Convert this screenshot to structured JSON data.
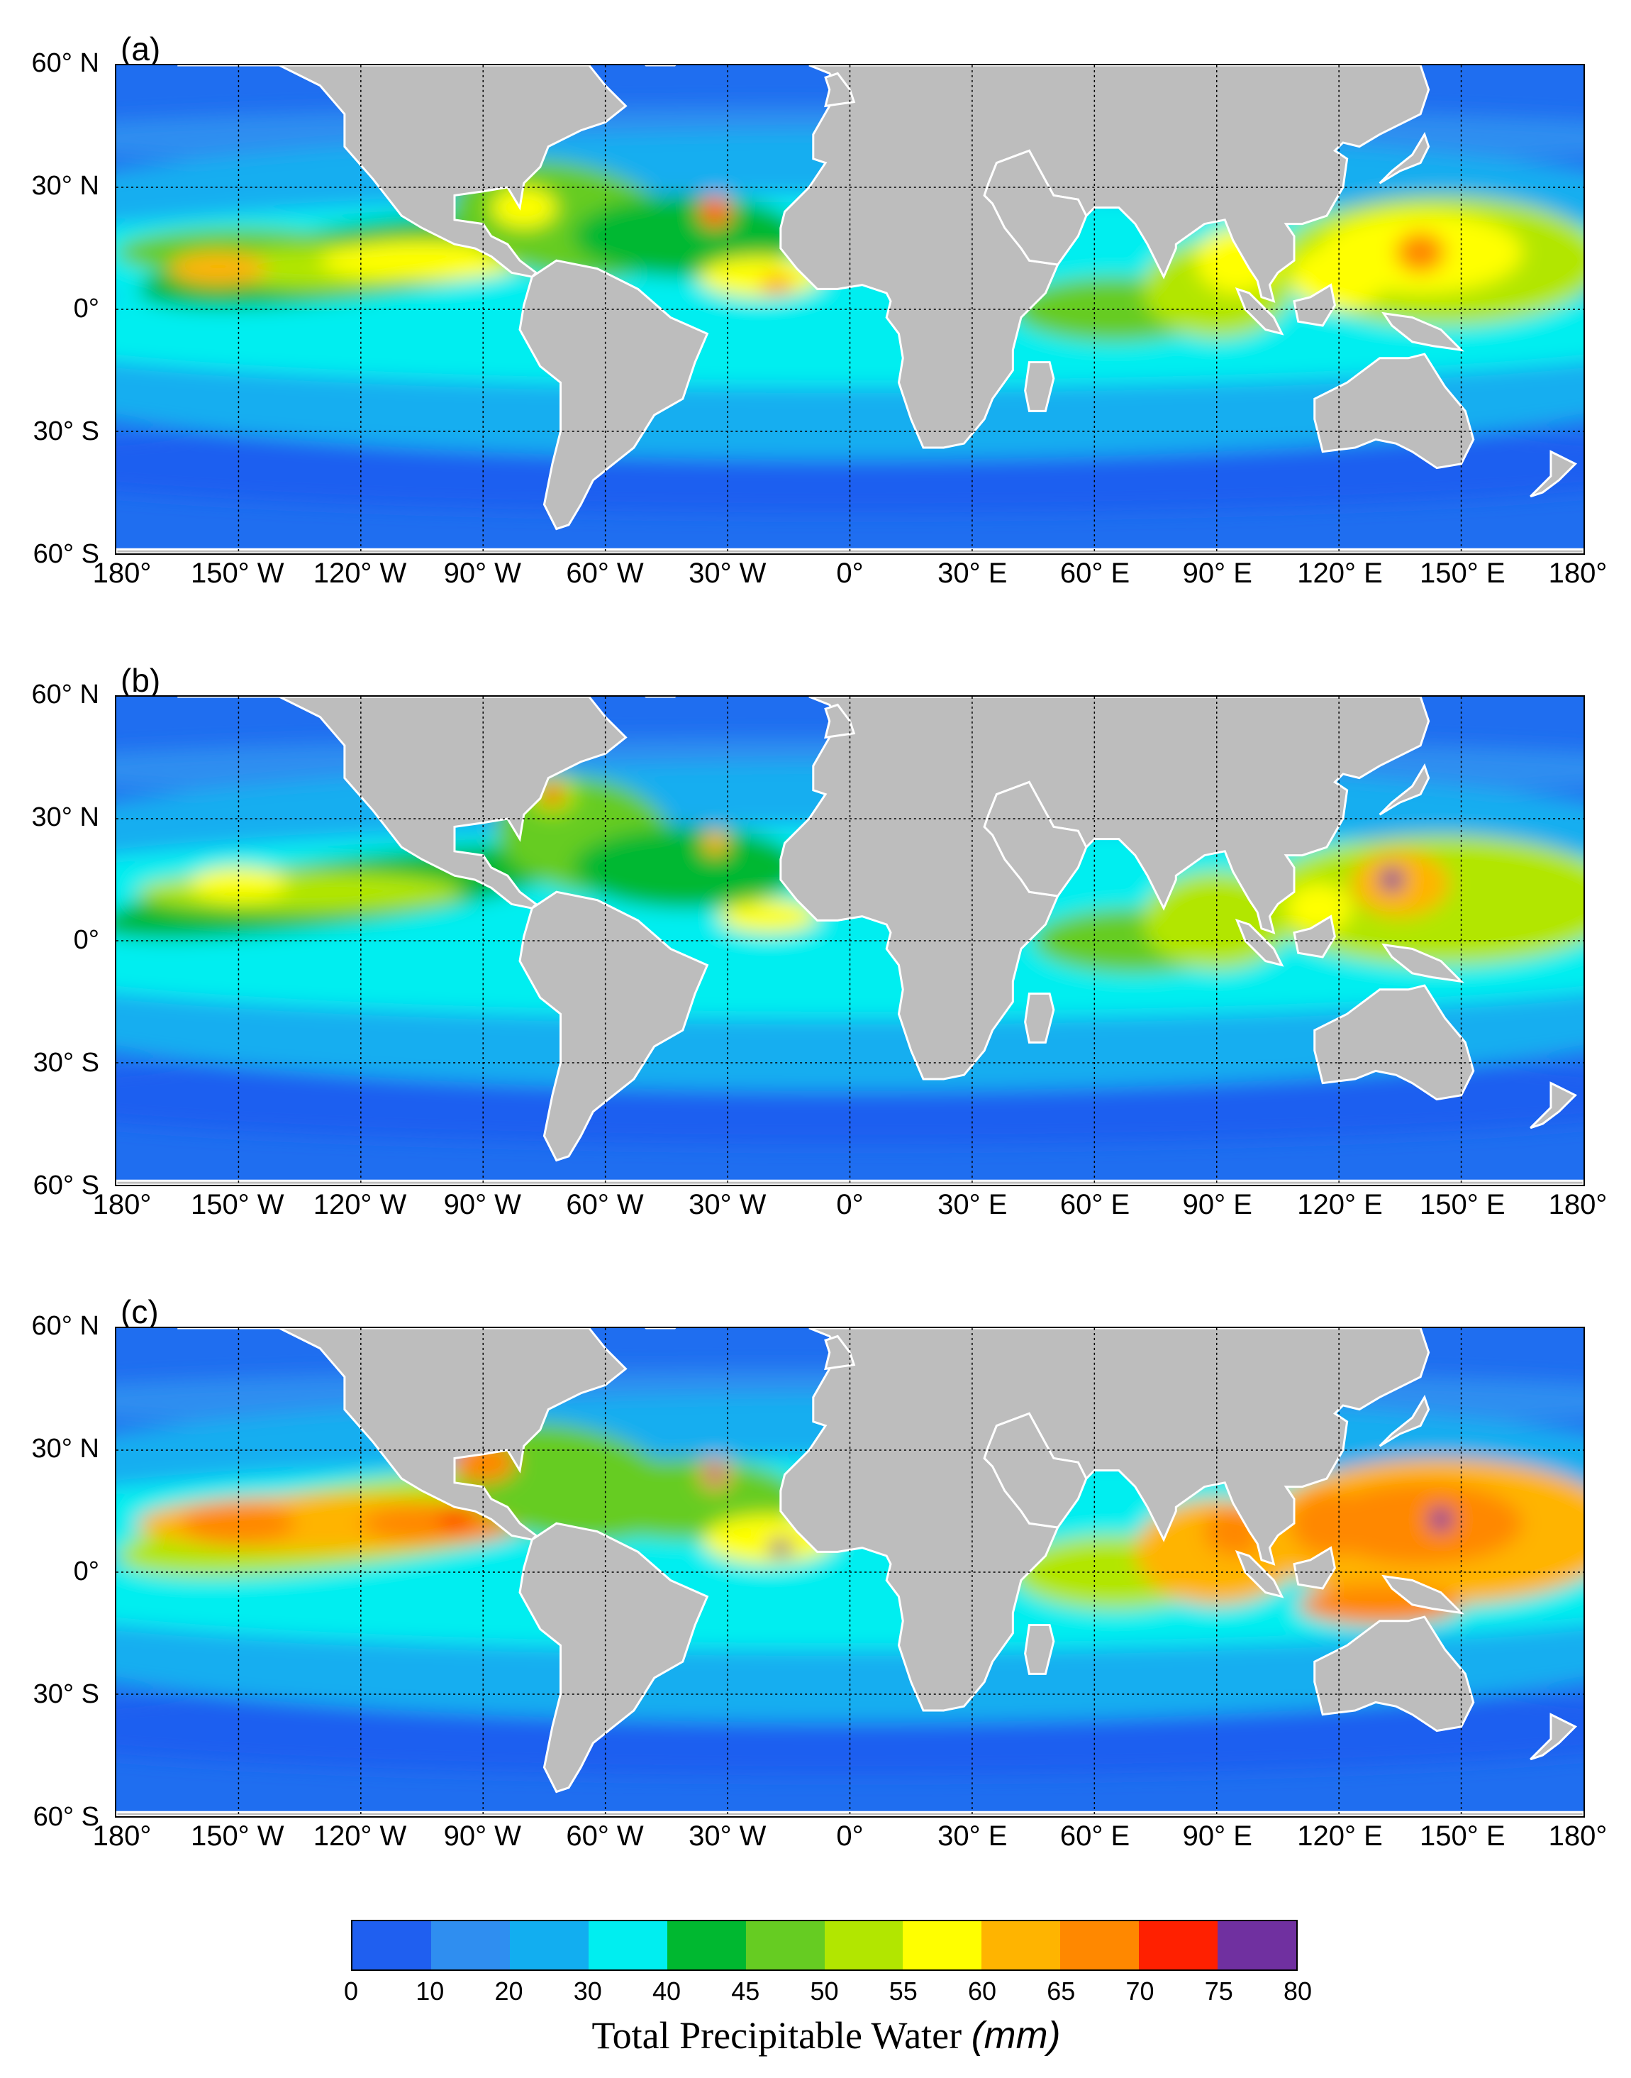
{
  "panels": [
    {
      "id": "a",
      "label": "(a)"
    },
    {
      "id": "b",
      "label": "(b)"
    },
    {
      "id": "c",
      "label": "(c)"
    }
  ],
  "lat_ticks": [
    {
      "value": 60,
      "label": "60° N"
    },
    {
      "value": 30,
      "label": "30° N"
    },
    {
      "value": 0,
      "label": "0°"
    },
    {
      "value": -30,
      "label": "30° S"
    },
    {
      "value": -60,
      "label": "60° S"
    }
  ],
  "lon_ticks": [
    {
      "value": -180,
      "label": "180°"
    },
    {
      "value": -150,
      "label": "150° W"
    },
    {
      "value": -120,
      "label": "120° W"
    },
    {
      "value": -90,
      "label": "90° W"
    },
    {
      "value": -60,
      "label": "60° W"
    },
    {
      "value": -30,
      "label": "30° W"
    },
    {
      "value": 0,
      "label": "0°"
    },
    {
      "value": 30,
      "label": "30° E"
    },
    {
      "value": 60,
      "label": "60° E"
    },
    {
      "value": 90,
      "label": "90° E"
    },
    {
      "value": 120,
      "label": "120° E"
    },
    {
      "value": 150,
      "label": "150° E"
    },
    {
      "value": 180,
      "label": "180°"
    }
  ],
  "map_extent": {
    "lon": [
      -180,
      180
    ],
    "lat": [
      -60,
      60
    ]
  },
  "colors": {
    "land": "#bdbdbd",
    "ocean_base": "#1f6ef0",
    "levels": [
      "#1f5ff0",
      "#2f8ef0",
      "#12aef0",
      "#00eef0",
      "#00b830",
      "#66cc22",
      "#b2e600",
      "#ffff00",
      "#ffb400",
      "#ff8800",
      "#ff2000",
      "#7030a0"
    ]
  },
  "colorbar": {
    "ticks": [
      "0",
      "10",
      "20",
      "30",
      "40",
      "45",
      "50",
      "55",
      "60",
      "65",
      "70",
      "75",
      "80"
    ],
    "title": "Total Precipitable Water",
    "unit": "(mm)"
  }
}
